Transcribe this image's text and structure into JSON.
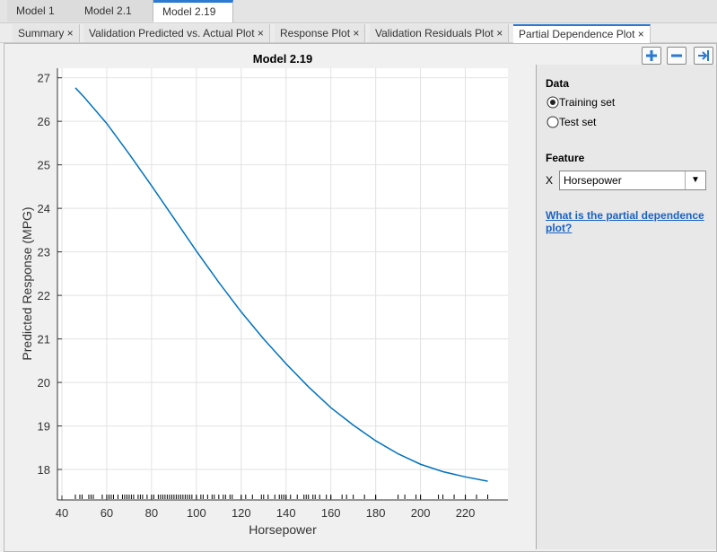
{
  "tabs": [
    "Model 1",
    "Model 2.1",
    "Model 2.19"
  ],
  "plot_tabs": [
    "Summary",
    "Validation Predicted vs. Actual Plot",
    "Response Plot",
    "Validation Residuals Plot",
    "Partial Dependence Plot"
  ],
  "chart_data": {
    "type": "line",
    "title": "Model 2.19",
    "xlabel": "Horsepower",
    "ylabel": "Predicted Response (MPG)",
    "x": [
      46,
      50,
      60,
      70,
      80,
      90,
      100,
      110,
      120,
      130,
      140,
      150,
      160,
      170,
      180,
      190,
      200,
      210,
      220,
      230
    ],
    "series": [
      {
        "color": "#0072bd",
        "values": [
          26.77,
          26.55,
          25.95,
          25.25,
          24.52,
          23.77,
          23.02,
          22.3,
          21.62,
          21.0,
          20.43,
          19.9,
          19.42,
          19.02,
          18.66,
          18.36,
          18.12,
          17.95,
          17.83,
          17.73
        ]
      }
    ],
    "rug": [
      46,
      48,
      49,
      52,
      53,
      54,
      58,
      60,
      61,
      62,
      63,
      65,
      67,
      68,
      69,
      70,
      71,
      72,
      74,
      75,
      76,
      78,
      80,
      81,
      83,
      84,
      85,
      86,
      87,
      88,
      89,
      90,
      91,
      92,
      93,
      94,
      95,
      96,
      97,
      98,
      100,
      102,
      103,
      105,
      107,
      108,
      110,
      112,
      113,
      115,
      116,
      120,
      122,
      125,
      129,
      130,
      132,
      135,
      137,
      138,
      139,
      140,
      142,
      145,
      148,
      149,
      150,
      152,
      153,
      155,
      158,
      160,
      165,
      167,
      170,
      175,
      180,
      190,
      193,
      198,
      200,
      208,
      210,
      215,
      220,
      225,
      230
    ],
    "xlim": [
      38,
      239
    ],
    "ylim": [
      17.3,
      27.22
    ],
    "xticks": [
      40,
      60,
      80,
      100,
      120,
      140,
      160,
      180,
      200,
      220
    ],
    "yticks": [
      18,
      19,
      20,
      21,
      22,
      23,
      24,
      25,
      26,
      27
    ],
    "grid": true
  },
  "panel": {
    "data_label": "Data",
    "options": [
      "Training set",
      "Test set"
    ],
    "feature_label": "Feature",
    "feature_axis": "X",
    "feature_value": "Horsepower",
    "help_link": "What is the partial dependence plot?"
  }
}
